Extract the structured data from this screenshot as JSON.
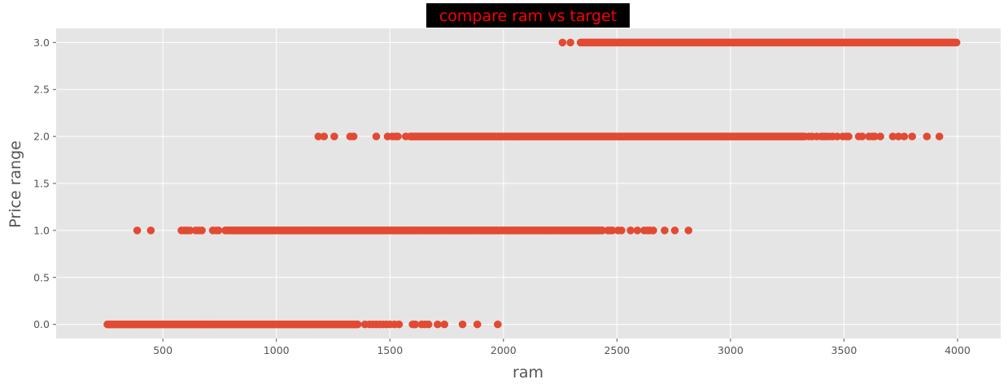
{
  "chart_data": {
    "type": "scatter",
    "title": "compare ram vs target",
    "xlabel": "ram",
    "ylabel": "Price range",
    "xlim": [
      30,
      4190
    ],
    "ylim": [
      -0.15,
      3.15
    ],
    "xticks": [
      500,
      1000,
      1500,
      2000,
      2500,
      3000,
      3500,
      4000
    ],
    "yticks": [
      0.0,
      0.5,
      1.0,
      1.5,
      2.0,
      2.5,
      3.0
    ],
    "xtick_labels": [
      "500",
      "1000",
      "1500",
      "2000",
      "2500",
      "3000",
      "3500",
      "4000"
    ],
    "ytick_labels": [
      "0.0",
      "0.5",
      "1.0",
      "1.5",
      "2.0",
      "2.5",
      "3.0"
    ],
    "grid": true,
    "style": "ggplot",
    "colors": {
      "marker": "#E24A33",
      "plot_background": "#E5E5E5",
      "grid": "#FFFFFF",
      "title_text": "#FF0000",
      "title_background": "#000000"
    },
    "series": [
      {
        "y": 0,
        "dense_range": [
          256,
          1360
        ],
        "x": [
          1390,
          1410,
          1425,
          1440,
          1455,
          1470,
          1485,
          1500,
          1520,
          1540,
          1600,
          1612,
          1640,
          1655,
          1670,
          1710,
          1740,
          1820,
          1885,
          1975
        ]
      },
      {
        "y": 1,
        "dense_range": [
          775,
          2440
        ],
        "x": [
          387,
          447,
          582,
          595,
          607,
          620,
          645,
          660,
          672,
          720,
          735,
          745,
          2460,
          2470,
          2480,
          2505,
          2520,
          2560,
          2590,
          2620,
          2635,
          2645,
          2660,
          2710,
          2755,
          2815
        ]
      },
      {
        "y": 2,
        "dense_range": [
          1590,
          3330
        ],
        "x": [
          1185,
          1210,
          1255,
          1325,
          1340,
          1440,
          1490,
          1510,
          1525,
          1535,
          1570,
          3345,
          3360,
          3380,
          3400,
          3410,
          3420,
          3435,
          3450,
          3470,
          3495,
          3510,
          3520,
          3565,
          3580,
          3610,
          3625,
          3635,
          3660,
          3715,
          3740,
          3765,
          3800,
          3865,
          3920
        ]
      },
      {
        "y": 3,
        "dense_range": [
          2340,
          3998
        ],
        "x": [
          2260,
          2295
        ]
      }
    ]
  }
}
